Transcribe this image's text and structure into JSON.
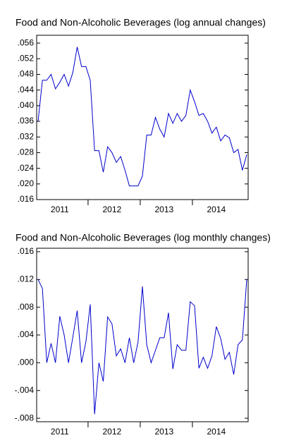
{
  "chart_data": [
    {
      "type": "line",
      "title": "Food and Non-Alcoholic Beverages (log annual changes)",
      "categories": [
        null,
        null,
        null,
        null,
        null,
        "2011",
        null,
        null,
        null,
        null,
        null,
        null,
        null,
        null,
        null,
        null,
        null,
        "2012",
        null,
        null,
        null,
        null,
        null,
        null,
        null,
        null,
        null,
        null,
        null,
        "2013",
        null,
        null,
        null,
        null,
        null,
        null,
        null,
        null,
        null,
        null,
        null,
        "2014",
        null,
        null,
        null,
        null,
        null,
        null,
        null
      ],
      "series": [
        {
          "name": "Food and Non-Alcoholic Beverages",
          "color": "#0000cc",
          "values": [
            0.036,
            0.0465,
            0.0465,
            0.048,
            0.0443,
            0.046,
            0.048,
            0.045,
            0.0485,
            0.055,
            0.05,
            0.05,
            0.0465,
            0.0285,
            0.0285,
            0.023,
            0.0295,
            0.028,
            0.0255,
            0.027,
            0.0235,
            0.0195,
            0.0195,
            0.0195,
            0.022,
            0.0325,
            0.0325,
            0.037,
            0.034,
            0.032,
            0.038,
            0.0355,
            0.038,
            0.036,
            0.0375,
            0.044,
            0.041,
            0.0375,
            0.038,
            0.036,
            0.033,
            0.0345,
            0.031,
            0.0325,
            0.0318,
            0.028,
            0.0288,
            0.0235,
            0.0275
          ]
        }
      ],
      "ylim": [
        0.016,
        0.058
      ],
      "yticks": [
        {
          "value": 0.016,
          "label": ".016"
        },
        {
          "value": 0.02,
          "label": ".020"
        },
        {
          "value": 0.024,
          "label": ".024"
        },
        {
          "value": 0.028,
          "label": ".028"
        },
        {
          "value": 0.032,
          "label": ".032"
        },
        {
          "value": 0.036,
          "label": ".036"
        },
        {
          "value": 0.04,
          "label": ".040"
        },
        {
          "value": 0.044,
          "label": ".044"
        },
        {
          "value": 0.048,
          "label": ".048"
        },
        {
          "value": 0.052,
          "label": ".052"
        },
        {
          "value": 0.056,
          "label": ".056"
        }
      ]
    },
    {
      "type": "line",
      "title": "Food and Non-Alcoholic Beverages (log monthly changes)",
      "categories": [
        null,
        null,
        null,
        null,
        null,
        "2011",
        null,
        null,
        null,
        null,
        null,
        null,
        null,
        null,
        null,
        null,
        null,
        "2012",
        null,
        null,
        null,
        null,
        null,
        null,
        null,
        null,
        null,
        null,
        null,
        "2013",
        null,
        null,
        null,
        null,
        null,
        null,
        null,
        null,
        null,
        null,
        null,
        "2014",
        null,
        null,
        null,
        null,
        null,
        null,
        null
      ],
      "series": [
        {
          "name": "Food and Non-Alcoholic Beverages",
          "color": "#0000cc",
          "values": [
            0.012,
            0.0107,
            0,
            0.0028,
            0,
            0.0067,
            0.004,
            0,
            0.0037,
            0.0075,
            0,
            0.003,
            0.0084,
            -0.0074,
            0,
            -0.0027,
            0.0066,
            0.0056,
            0.001,
            0.002,
            0,
            0.0036,
            0,
            0.003,
            0.011,
            0.0026,
            0,
            0.0018,
            0.0036,
            0.0036,
            0.0072,
            -0.0009,
            0.0026,
            0.0018,
            0.0018,
            0.0088,
            0.0082,
            -0.0008,
            0.0008,
            -0.0008,
            0.001,
            0.0052,
            0.0035,
            0.0005,
            0.0015,
            -0.0017,
            0.0026,
            0.0033,
            0.012
          ]
        }
      ],
      "ylim": [
        -0.0085,
        0.0165
      ],
      "yticks": [
        {
          "value": -0.008,
          "label": "-.008"
        },
        {
          "value": -0.004,
          "label": "-.004"
        },
        {
          "value": 0,
          "label": ".000"
        },
        {
          "value": 0.004,
          "label": ".004"
        },
        {
          "value": 0.008,
          "label": ".008"
        },
        {
          "value": 0.012,
          "label": ".012"
        },
        {
          "value": 0.016,
          "label": ".016"
        }
      ]
    }
  ]
}
